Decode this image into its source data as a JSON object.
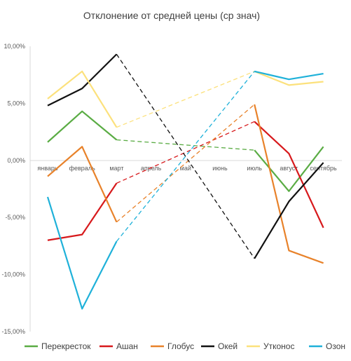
{
  "chart_data": {
    "type": "line",
    "title": "Отклонение от средней цены (ср знач)",
    "categories": [
      "январь",
      "февраль",
      "март",
      "апрель",
      "май",
      "июнь",
      "июль",
      "август",
      "сентябрь"
    ],
    "ylim": [
      -15,
      10
    ],
    "yticks": [
      10,
      5,
      0,
      -5,
      -10,
      -15
    ],
    "ytick_labels": [
      "10,00%",
      "5,00%",
      "0,00%",
      "-5,00%",
      "-10,00%",
      "-15,00%"
    ],
    "grid": false,
    "legend_position": "bottom",
    "series": [
      {
        "name": "Перекресток",
        "color": "#5aac44",
        "values": [
          1.6,
          4.3,
          1.8,
          null,
          null,
          null,
          0.9,
          -2.7,
          1.2
        ]
      },
      {
        "name": "Ашан",
        "color": "#d7191c",
        "values": [
          -7.0,
          -6.5,
          -2.0,
          null,
          null,
          null,
          3.4,
          0.6,
          -5.9
        ]
      },
      {
        "name": "Глобус",
        "color": "#e8822a",
        "values": [
          -1.4,
          1.2,
          -5.4,
          null,
          null,
          null,
          4.9,
          -7.9,
          -9.0
        ]
      },
      {
        "name": "Окей",
        "color": "#111111",
        "values": [
          4.8,
          6.3,
          9.3,
          null,
          null,
          null,
          -8.6,
          -3.6,
          -0.2
        ]
      },
      {
        "name": "Утконос",
        "color": "#fce17c",
        "values": [
          5.4,
          7.8,
          2.9,
          null,
          null,
          null,
          7.8,
          6.6,
          6.9
        ]
      },
      {
        "name": "Озон",
        "color": "#1fb1d9",
        "values": [
          -3.2,
          -13.0,
          -7.1,
          null,
          null,
          null,
          7.8,
          7.1,
          7.6
        ]
      }
    ]
  }
}
